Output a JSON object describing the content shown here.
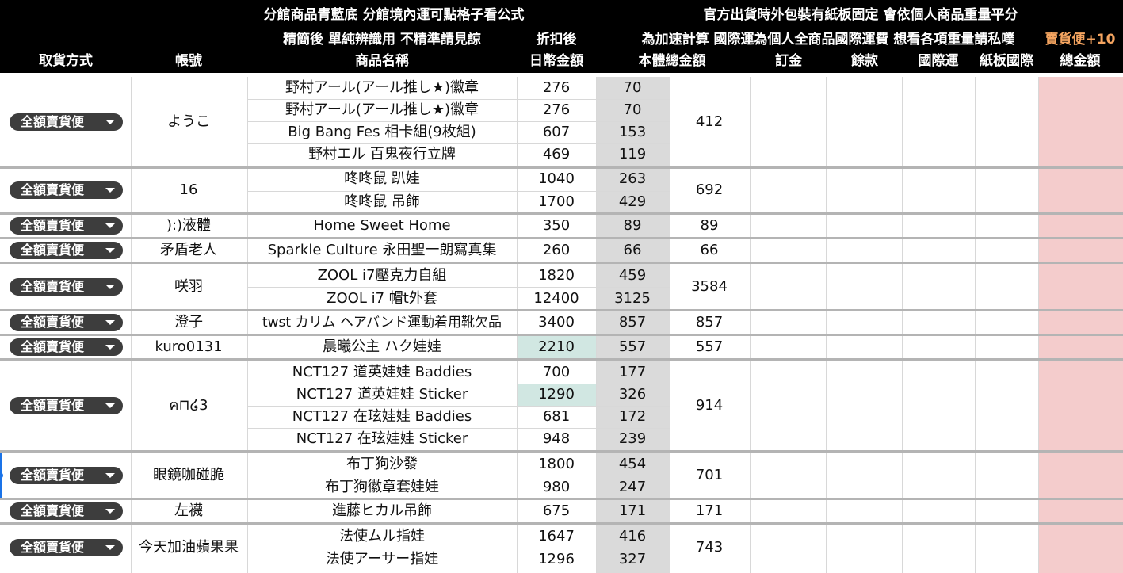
{
  "header": {
    "line1_left": "分館商品青藍底 分館境內運可點格子看公式",
    "line1_right": "官方出貨時外包裝有紙板固定 會依個人商品重量平分",
    "line2_mid": "精簡後 單純辨識用 不精準請見諒",
    "line2_discount": "折扣後",
    "line2_right": "為加速計算 國際運為個人全商品國際運費 想看各項重量請私噗",
    "line2_fee": "賣貨便+10",
    "col_pickup": "取貨方式",
    "col_account": "帳號",
    "col_product": "商品名稱",
    "col_jpy": "日幣金額",
    "col_total": "本體總金額",
    "col_deposit": "訂金",
    "col_balance": "餘款",
    "col_intl": "國際運",
    "col_board": "紙板國際",
    "col_grand": "總金額"
  },
  "groups": [
    {
      "pickup": "全額賣貨便",
      "account": "ようこ",
      "total": "412",
      "items": [
        {
          "name": "野村アール(アール推し★)徽章",
          "jpy": "276",
          "twd": "70"
        },
        {
          "name": "野村アール(アール推し★)徽章",
          "jpy": "276",
          "twd": "70"
        },
        {
          "name": "Big Bang Fes 相卡組(9枚組)",
          "jpy": "607",
          "twd": "153"
        },
        {
          "name": "野村エル 百鬼夜行立牌",
          "jpy": "469",
          "twd": "119"
        }
      ]
    },
    {
      "pickup": "全額賣貨便",
      "account": "16",
      "total": "692",
      "items": [
        {
          "name": "咚咚鼠 趴娃",
          "jpy": "1040",
          "twd": "263"
        },
        {
          "name": "咚咚鼠 吊飾",
          "jpy": "1700",
          "twd": "429"
        }
      ]
    },
    {
      "pickup": "全額賣貨便",
      "account": "):)液體",
      "total": "89",
      "items": [
        {
          "name": "Home Sweet Home",
          "jpy": "350",
          "twd": "89"
        }
      ]
    },
    {
      "pickup": "全額賣貨便",
      "account": "矛盾老人",
      "total": "66",
      "items": [
        {
          "name": "Sparkle Culture 永田聖一朗寫真集",
          "jpy": "260",
          "twd": "66"
        }
      ]
    },
    {
      "pickup": "全額賣貨便",
      "account": "咲羽",
      "total": "3584",
      "items": [
        {
          "name": "ZOOL i7壓克力自組",
          "jpy": "1820",
          "twd": "459"
        },
        {
          "name": "ZOOL i7 帽t外套",
          "jpy": "12400",
          "twd": "3125"
        }
      ]
    },
    {
      "pickup": "全額賣貨便",
      "account": "澄子",
      "total": "857",
      "items": [
        {
          "name": "twst カリム ヘアバンド運動着用靴欠品",
          "jpy": "3400",
          "twd": "857"
        }
      ]
    },
    {
      "pickup": "全額賣貨便",
      "account": "kuro0131",
      "total": "557",
      "items": [
        {
          "name": "晨曦公主 ハク娃娃",
          "jpy": "2210",
          "twd": "557"
        }
      ]
    },
    {
      "pickup": "全額賣貨便",
      "account": "ฅ⊓໒3",
      "total": "914",
      "items": [
        {
          "name": "NCT127 道英娃娃 Baddies",
          "jpy": "700",
          "twd": "177"
        },
        {
          "name": "NCT127 道英娃娃 Sticker",
          "jpy": "1290",
          "twd": "326"
        },
        {
          "name": "NCT127 在玹娃娃 Baddies",
          "jpy": "681",
          "twd": "172"
        },
        {
          "name": "NCT127 在玹娃娃 Sticker",
          "jpy": "948",
          "twd": "239"
        }
      ]
    },
    {
      "pickup": "全額賣貨便",
      "account": "眼鏡咖碰脆",
      "total": "701",
      "items": [
        {
          "name": "布丁狗沙發",
          "jpy": "1800",
          "twd": "454"
        },
        {
          "name": "布丁狗徽章套娃娃",
          "jpy": "980",
          "twd": "247"
        }
      ]
    },
    {
      "pickup": "全額賣貨便",
      "account": "左襪",
      "total": "171",
      "items": [
        {
          "name": "進藤ヒカル吊飾",
          "jpy": "675",
          "twd": "171"
        }
      ]
    },
    {
      "pickup": "全額賣貨便",
      "account": "今天加油蘋果果",
      "total": "743",
      "items": [
        {
          "name": "法使ムル指娃",
          "jpy": "1647",
          "twd": "416"
        },
        {
          "name": "法使アーサー指娃",
          "jpy": "1296",
          "twd": "327"
        }
      ]
    }
  ]
}
